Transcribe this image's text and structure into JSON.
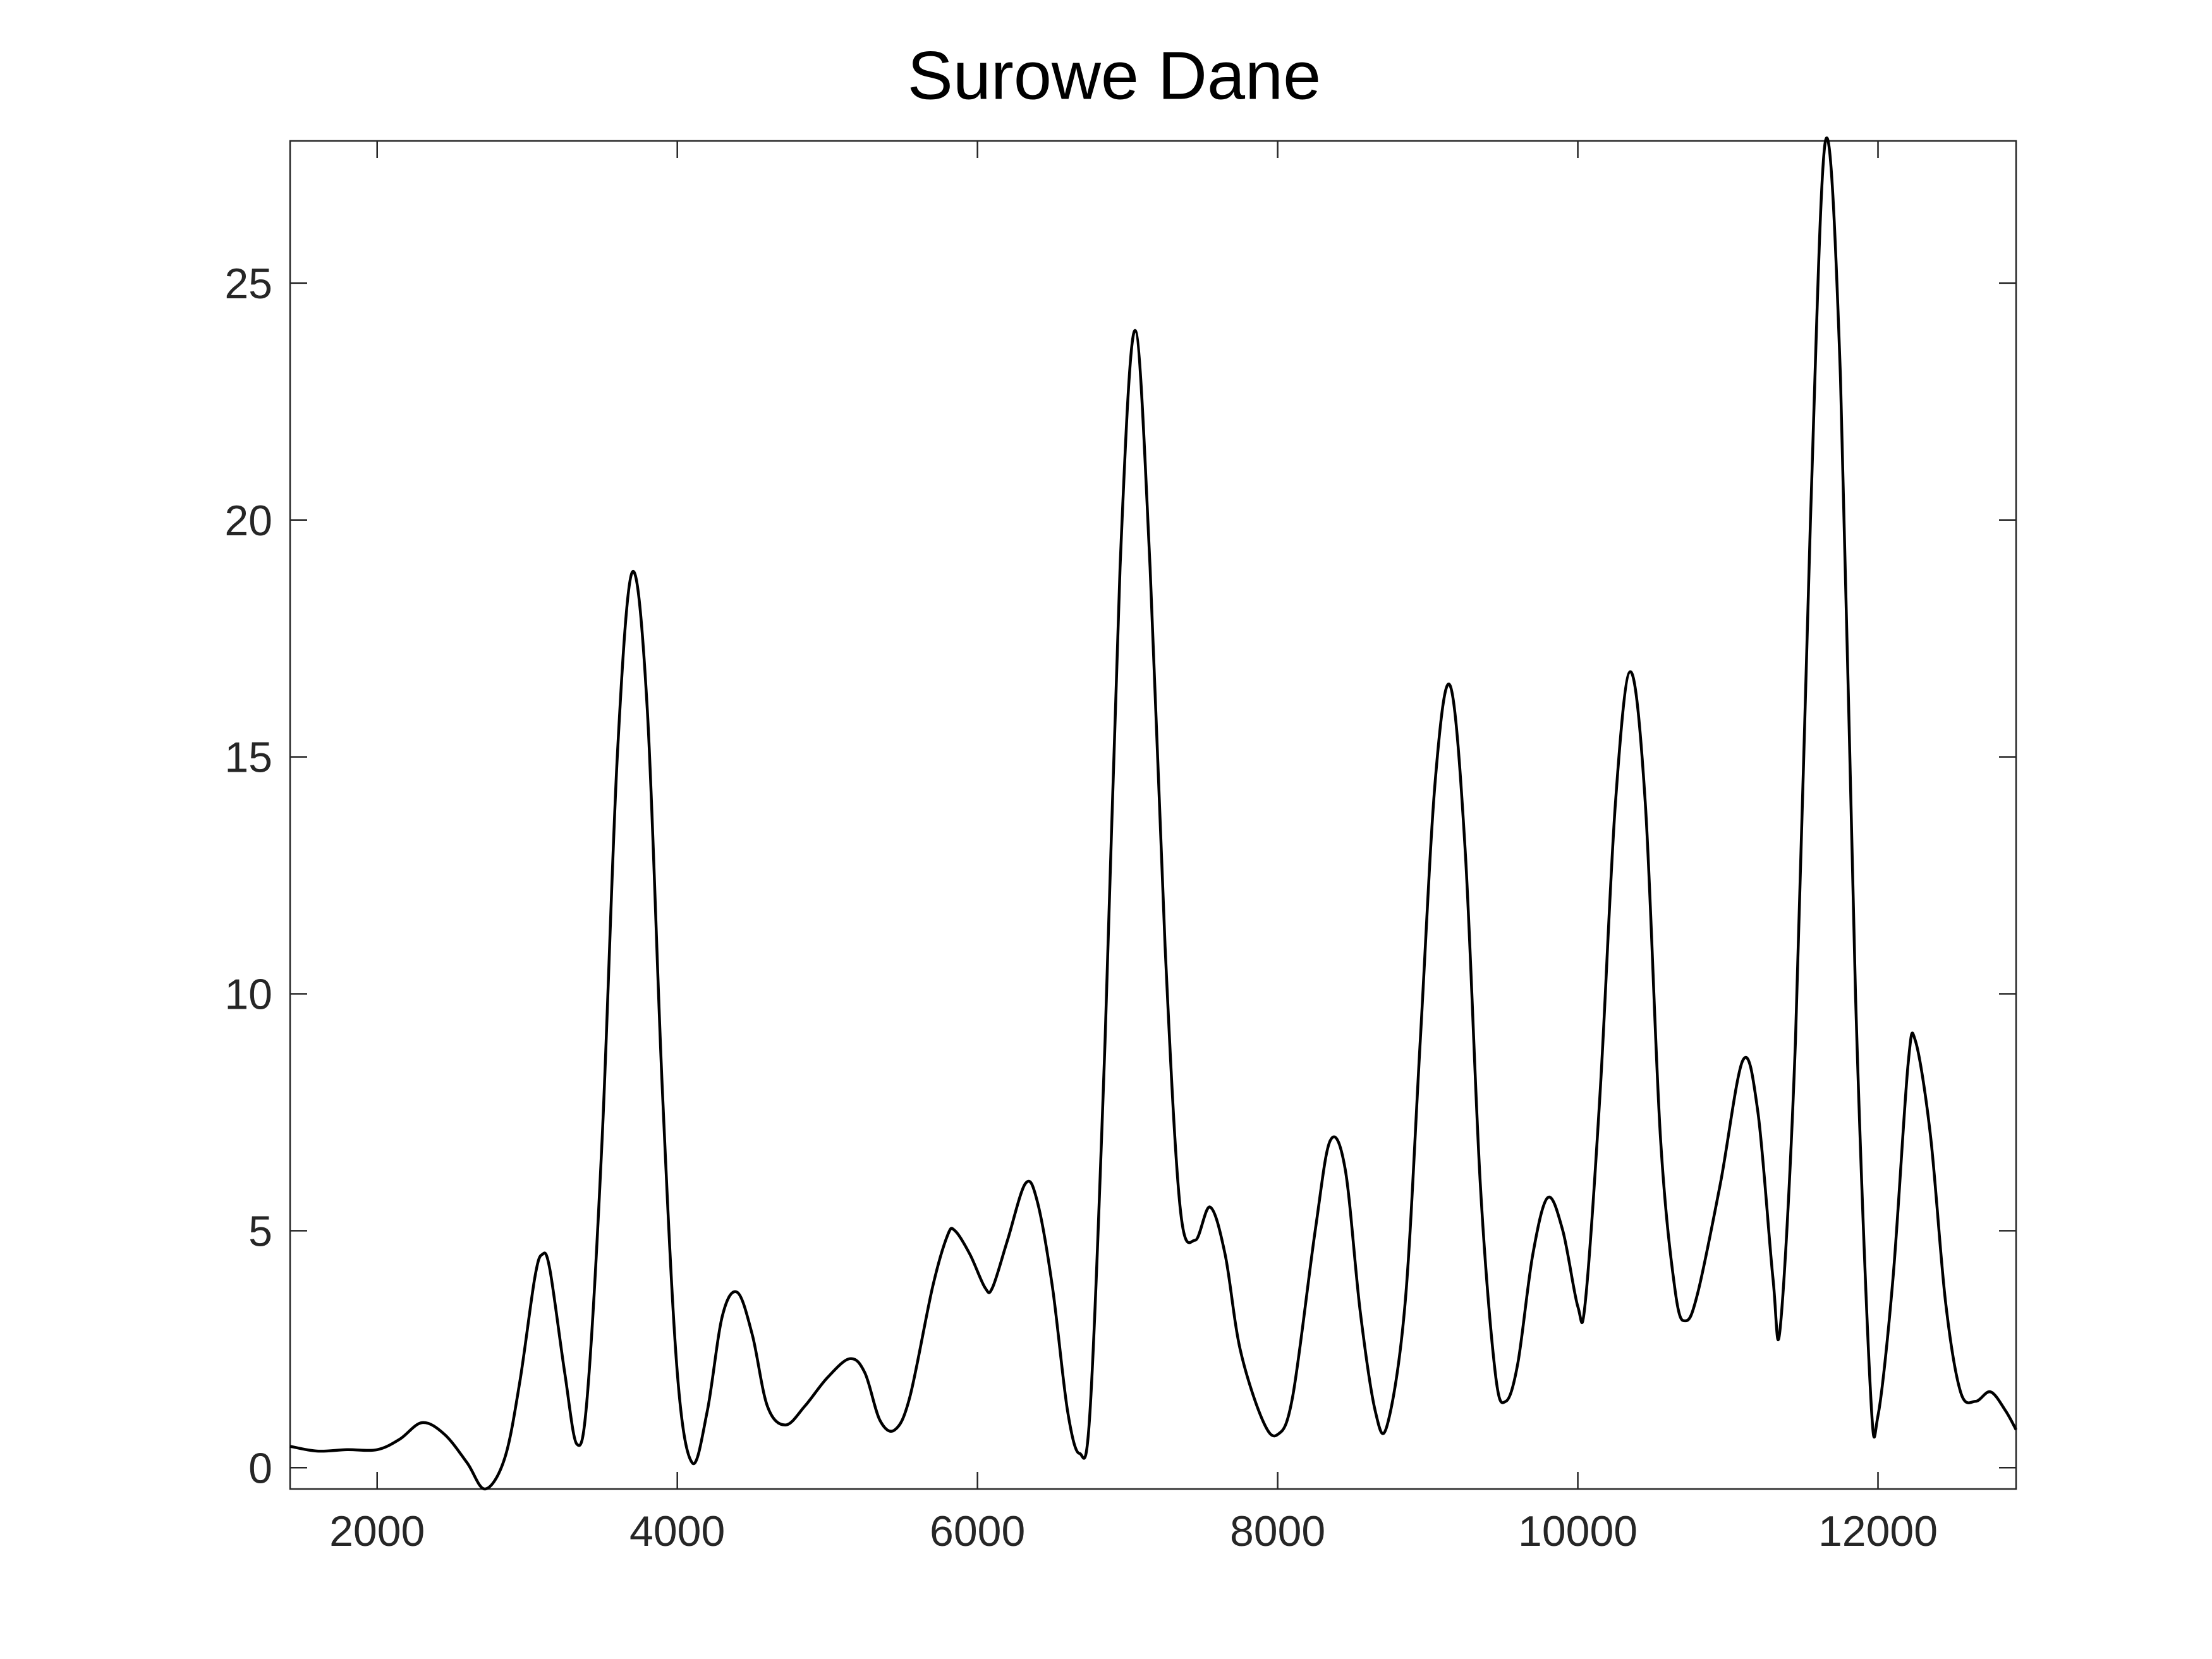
{
  "chart_data": {
    "type": "line",
    "title": "Surowe Dane",
    "color": "#000000",
    "x": [
      1420,
      1600,
      1800,
      2000,
      2150,
      2300,
      2450,
      2600,
      2720,
      2850,
      2950,
      3050,
      3100,
      3150,
      3250,
      3330,
      3400,
      3500,
      3600,
      3700,
      3800,
      3900,
      4000,
      4100,
      4200,
      4300,
      4400,
      4500,
      4600,
      4720,
      4850,
      5000,
      5150,
      5250,
      5350,
      5450,
      5550,
      5700,
      5800,
      5850,
      5950,
      6050,
      6100,
      6200,
      6320,
      6400,
      6500,
      6600,
      6680,
      6750,
      6850,
      6950,
      7050,
      7150,
      7250,
      7350,
      7450,
      7550,
      7650,
      7750,
      7900,
      8000,
      8100,
      8250,
      8350,
      8450,
      8550,
      8650,
      8730,
      8850,
      8950,
      9050,
      9150,
      9250,
      9350,
      9450,
      9520,
      9600,
      9700,
      9800,
      9900,
      10000,
      10050,
      10150,
      10250,
      10350,
      10450,
      10550,
      10650,
      10720,
      10800,
      10950,
      11100,
      11200,
      11300,
      11350,
      11450,
      11550,
      11650,
      11750,
      11850,
      11950,
      12000,
      12100,
      12200,
      12250,
      12350,
      12450,
      12550,
      12650,
      12750,
      12850,
      12920
    ],
    "values": [
      0.45,
      0.35,
      0.38,
      0.38,
      0.6,
      0.95,
      0.7,
      0.1,
      -0.45,
      0.2,
      1.8,
      4.0,
      4.5,
      4.2,
      2.0,
      0.5,
      1.5,
      7,
      15,
      18.9,
      16,
      8,
      2,
      0.1,
      1.2,
      3.2,
      3.7,
      2.8,
      1.3,
      0.9,
      1.3,
      1.9,
      2.3,
      2.0,
      1.0,
      0.8,
      1.5,
      3.8,
      4.9,
      5.0,
      4.5,
      3.8,
      3.8,
      4.8,
      6.0,
      5.6,
      3.8,
      1.2,
      0.3,
      1.2,
      9,
      19,
      24,
      19,
      11,
      5.5,
      4.8,
      5.5,
      4.5,
      2.5,
      1.0,
      0.7,
      1.5,
      5,
      6.9,
      6.3,
      3.3,
      1.2,
      0.9,
      3.5,
      9,
      14.5,
      16.5,
      13,
      6,
      2,
      1.4,
      2.2,
      4.5,
      5.7,
      5.0,
      3.4,
      3.5,
      8,
      14,
      16.8,
      14,
      7,
      3.7,
      3.1,
      3.7,
      6,
      8.6,
      7.5,
      4,
      3.0,
      9,
      20,
      28,
      23,
      10,
      1.6,
      1.1,
      4,
      8.5,
      9,
      7,
      3.5,
      1.6,
      1.4,
      1.6,
      1.2,
      0.8
    ],
    "xlim": [
      1420,
      12920
    ],
    "ylim": [
      -0.45,
      28
    ],
    "xticks": [
      2000,
      4000,
      6000,
      8000,
      10000,
      12000
    ],
    "yticks": [
      0,
      5,
      10,
      15,
      20,
      25
    ]
  }
}
